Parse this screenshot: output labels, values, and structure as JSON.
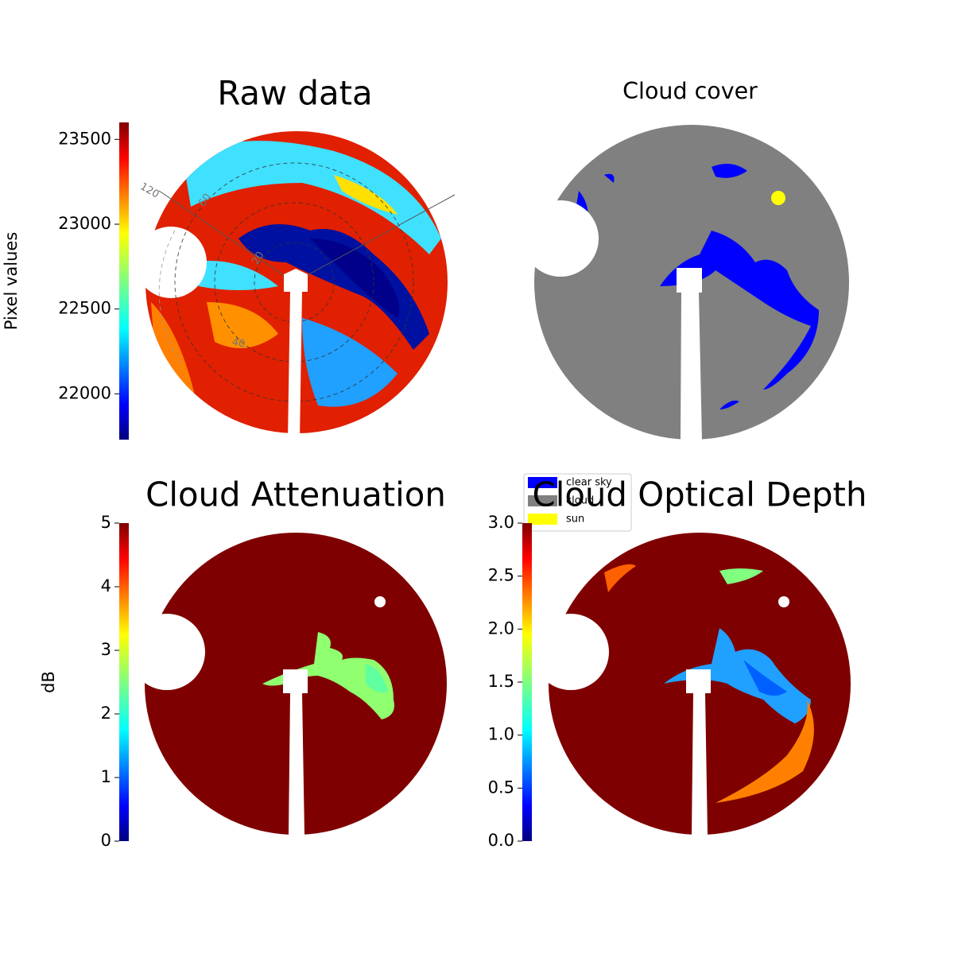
{
  "chart_data": [
    {
      "type": "image",
      "title": "Raw data",
      "colorbar": {
        "label": "Pixel values",
        "colormap": "jet",
        "ylim": [
          21730,
          23600
        ],
        "yticks": [
          22000,
          22500,
          23000,
          23500
        ]
      },
      "annotations": [
        "120",
        "60",
        "20",
        "40"
      ]
    },
    {
      "type": "image",
      "title": "Cloud cover",
      "series": [
        {
          "name": "clear sky",
          "color": "#0000ff"
        },
        {
          "name": "cloud",
          "color": "#808080"
        },
        {
          "name": "sun",
          "color": "#ffff00"
        }
      ]
    },
    {
      "type": "image",
      "title": "Cloud Attenuation",
      "colorbar": {
        "label": "dB",
        "colormap": "jet",
        "ylim": [
          0,
          5
        ],
        "yticks": [
          0,
          1,
          2,
          3,
          4,
          5
        ]
      }
    },
    {
      "type": "image",
      "title": "Cloud Optical Depth",
      "colorbar": {
        "colormap": "jet",
        "ylim": [
          0,
          3
        ],
        "yticks": [
          {
            "value": 0,
            "label": "0.0"
          },
          {
            "value": 0.5,
            "label": "0.5"
          },
          {
            "value": 1,
            "label": "1.0"
          },
          {
            "value": 1.5,
            "label": "1.5"
          },
          {
            "value": 2,
            "label": "2.0"
          },
          {
            "value": 2.5,
            "label": "2.5"
          },
          {
            "value": 3,
            "label": "3.0"
          }
        ]
      }
    }
  ]
}
